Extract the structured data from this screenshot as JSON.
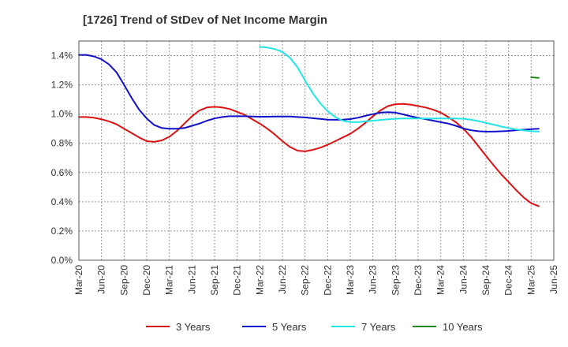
{
  "chart_data": {
    "type": "line",
    "title": "[1726]  Trend of StDev of Net Income Margin",
    "xlabel": "",
    "ylabel": "",
    "x_ticks": [
      "Mar-20",
      "Jun-20",
      "Sep-20",
      "Dec-20",
      "Mar-21",
      "Jun-21",
      "Sep-21",
      "Dec-21",
      "Mar-22",
      "Jun-22",
      "Sep-22",
      "Dec-22",
      "Mar-23",
      "Jun-23",
      "Sep-23",
      "Dec-23",
      "Mar-24",
      "Jun-24",
      "Sep-24",
      "Dec-24",
      "Mar-25",
      "Jun-25"
    ],
    "y_ticks": [
      "0.0%",
      "0.2%",
      "0.4%",
      "0.6%",
      "0.8%",
      "1.0%",
      "1.2%",
      "1.4%"
    ],
    "ylim": [
      0,
      1.5
    ],
    "grid": true,
    "legend_position": "bottom",
    "series": [
      {
        "name": "3 Years",
        "color": "#dd1111",
        "points": [
          [
            "Mar-20",
            0.98
          ],
          [
            "Apr-20",
            0.98
          ],
          [
            "May-20",
            0.975
          ],
          [
            "Jun-20",
            0.965
          ],
          [
            "Jul-20",
            0.95
          ],
          [
            "Aug-20",
            0.93
          ],
          [
            "Sep-20",
            0.9
          ],
          [
            "Oct-20",
            0.87
          ],
          [
            "Nov-20",
            0.84
          ],
          [
            "Dec-20",
            0.815
          ],
          [
            "Jan-21",
            0.81
          ],
          [
            "Feb-21",
            0.82
          ],
          [
            "Mar-21",
            0.845
          ],
          [
            "Apr-21",
            0.885
          ],
          [
            "May-21",
            0.935
          ],
          [
            "Jun-21",
            0.985
          ],
          [
            "Jul-21",
            1.025
          ],
          [
            "Aug-21",
            1.045
          ],
          [
            "Sep-21",
            1.05
          ],
          [
            "Oct-21",
            1.045
          ],
          [
            "Nov-21",
            1.035
          ],
          [
            "Dec-21",
            1.015
          ],
          [
            "Jan-22",
            0.995
          ],
          [
            "Feb-22",
            0.965
          ],
          [
            "Mar-22",
            0.935
          ],
          [
            "Apr-22",
            0.9
          ],
          [
            "May-22",
            0.86
          ],
          [
            "Jun-22",
            0.815
          ],
          [
            "Jul-22",
            0.775
          ],
          [
            "Aug-22",
            0.75
          ],
          [
            "Sep-22",
            0.745
          ],
          [
            "Oct-22",
            0.755
          ],
          [
            "Nov-22",
            0.77
          ],
          [
            "Dec-22",
            0.79
          ],
          [
            "Jan-23",
            0.815
          ],
          [
            "Feb-23",
            0.84
          ],
          [
            "Mar-23",
            0.865
          ],
          [
            "Apr-23",
            0.9
          ],
          [
            "May-23",
            0.94
          ],
          [
            "Jun-23",
            0.985
          ],
          [
            "Jul-23",
            1.025
          ],
          [
            "Aug-23",
            1.055
          ],
          [
            "Sep-23",
            1.068
          ],
          [
            "Oct-23",
            1.07
          ],
          [
            "Nov-23",
            1.065
          ],
          [
            "Dec-23",
            1.055
          ],
          [
            "Jan-24",
            1.045
          ],
          [
            "Feb-24",
            1.03
          ],
          [
            "Mar-24",
            1.01
          ],
          [
            "Apr-24",
            0.98
          ],
          [
            "May-24",
            0.945
          ],
          [
            "Jun-24",
            0.9
          ],
          [
            "Jul-24",
            0.845
          ],
          [
            "Aug-24",
            0.78
          ],
          [
            "Sep-24",
            0.715
          ],
          [
            "Oct-24",
            0.65
          ],
          [
            "Nov-24",
            0.59
          ],
          [
            "Dec-24",
            0.535
          ],
          [
            "Jan-25",
            0.48
          ],
          [
            "Feb-25",
            0.43
          ],
          [
            "Mar-25",
            0.39
          ],
          [
            "Apr-25",
            0.37
          ]
        ]
      },
      {
        "name": "5 Years",
        "color": "#1111cc",
        "points": [
          [
            "Mar-20",
            1.405
          ],
          [
            "Apr-20",
            1.405
          ],
          [
            "May-20",
            1.395
          ],
          [
            "Jun-20",
            1.375
          ],
          [
            "Jul-20",
            1.34
          ],
          [
            "Aug-20",
            1.285
          ],
          [
            "Sep-20",
            1.2
          ],
          [
            "Oct-20",
            1.11
          ],
          [
            "Nov-20",
            1.03
          ],
          [
            "Dec-20",
            0.97
          ],
          [
            "Jan-21",
            0.925
          ],
          [
            "Feb-21",
            0.905
          ],
          [
            "Mar-21",
            0.9
          ],
          [
            "Apr-21",
            0.9
          ],
          [
            "May-21",
            0.905
          ],
          [
            "Jun-21",
            0.92
          ],
          [
            "Jul-21",
            0.935
          ],
          [
            "Aug-21",
            0.955
          ],
          [
            "Sep-21",
            0.97
          ],
          [
            "Oct-21",
            0.98
          ],
          [
            "Nov-21",
            0.985
          ],
          [
            "Dec-21",
            0.985
          ],
          [
            "Jan-22",
            0.985
          ],
          [
            "Feb-22",
            0.983
          ],
          [
            "Mar-22",
            0.982
          ],
          [
            "Apr-22",
            0.982
          ],
          [
            "May-22",
            0.983
          ],
          [
            "Jun-22",
            0.983
          ],
          [
            "Jul-22",
            0.983
          ],
          [
            "Aug-22",
            0.98
          ],
          [
            "Sep-22",
            0.977
          ],
          [
            "Oct-22",
            0.972
          ],
          [
            "Nov-22",
            0.967
          ],
          [
            "Dec-22",
            0.962
          ],
          [
            "Jan-23",
            0.961
          ],
          [
            "Feb-23",
            0.962
          ],
          [
            "Mar-23",
            0.966
          ],
          [
            "Apr-23",
            0.975
          ],
          [
            "May-23",
            0.988
          ],
          [
            "Jun-23",
            1.0
          ],
          [
            "Jul-23",
            1.01
          ],
          [
            "Aug-23",
            1.013
          ],
          [
            "Sep-23",
            1.01
          ],
          [
            "Oct-23",
            0.998
          ],
          [
            "Nov-23",
            0.985
          ],
          [
            "Dec-23",
            0.975
          ],
          [
            "Jan-24",
            0.965
          ],
          [
            "Feb-24",
            0.955
          ],
          [
            "Mar-24",
            0.945
          ],
          [
            "Apr-24",
            0.935
          ],
          [
            "May-24",
            0.92
          ],
          [
            "Jun-24",
            0.902
          ],
          [
            "Jul-24",
            0.89
          ],
          [
            "Aug-24",
            0.883
          ],
          [
            "Sep-24",
            0.88
          ],
          [
            "Oct-24",
            0.88
          ],
          [
            "Nov-24",
            0.882
          ],
          [
            "Dec-24",
            0.885
          ],
          [
            "Jan-25",
            0.89
          ],
          [
            "Feb-25",
            0.893
          ],
          [
            "Mar-25",
            0.897
          ],
          [
            "Apr-25",
            0.9
          ]
        ]
      },
      {
        "name": "7 Years",
        "color": "#22e5e5",
        "points": [
          [
            "Mar-22",
            1.46
          ],
          [
            "Apr-22",
            1.455
          ],
          [
            "May-22",
            1.445
          ],
          [
            "Jun-22",
            1.425
          ],
          [
            "Jul-22",
            1.385
          ],
          [
            "Aug-22",
            1.32
          ],
          [
            "Sep-22",
            1.23
          ],
          [
            "Oct-22",
            1.145
          ],
          [
            "Nov-22",
            1.075
          ],
          [
            "Dec-22",
            1.02
          ],
          [
            "Jan-23",
            0.98
          ],
          [
            "Feb-23",
            0.955
          ],
          [
            "Mar-23",
            0.945
          ],
          [
            "Apr-23",
            0.945
          ],
          [
            "May-23",
            0.95
          ],
          [
            "Jun-23",
            0.955
          ],
          [
            "Jul-23",
            0.96
          ],
          [
            "Aug-23",
            0.965
          ],
          [
            "Sep-23",
            0.968
          ],
          [
            "Oct-23",
            0.97
          ],
          [
            "Nov-23",
            0.97
          ],
          [
            "Dec-23",
            0.97
          ],
          [
            "Jan-24",
            0.97
          ],
          [
            "Feb-24",
            0.97
          ],
          [
            "Mar-24",
            0.97
          ],
          [
            "Apr-24",
            0.97
          ],
          [
            "May-24",
            0.97
          ],
          [
            "Jun-24",
            0.968
          ],
          [
            "Jul-24",
            0.962
          ],
          [
            "Aug-24",
            0.952
          ],
          [
            "Sep-24",
            0.94
          ],
          [
            "Oct-24",
            0.928
          ],
          [
            "Nov-24",
            0.915
          ],
          [
            "Dec-24",
            0.905
          ],
          [
            "Jan-25",
            0.895
          ],
          [
            "Feb-25",
            0.888
          ],
          [
            "Mar-25",
            0.883
          ],
          [
            "Apr-25",
            0.88
          ]
        ]
      },
      {
        "name": "10 Years",
        "color": "#228b22",
        "points": [
          [
            "Mar-25",
            1.252
          ],
          [
            "Apr-25",
            1.248
          ]
        ]
      }
    ]
  }
}
